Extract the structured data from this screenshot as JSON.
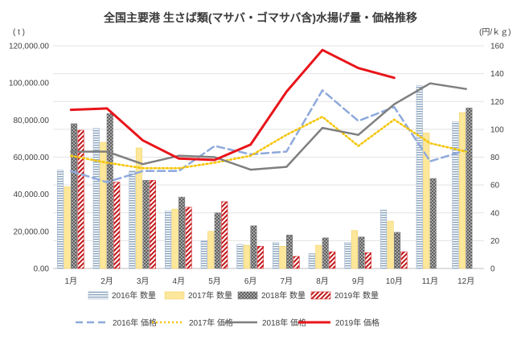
{
  "chart_data": {
    "type": "bar+line",
    "title": "全国主要港 生さば類(マサバ・ゴマサバ含)水揚げ量・価格推移",
    "y_left_unit": "( t )",
    "y_right_unit": "(円/ｋｇ)",
    "y_left_ticks": [
      "0.00",
      "20,000.00",
      "40,000.00",
      "60,000.00",
      "80,000.00",
      "100,000.00",
      "120,000.00"
    ],
    "y_right_ticks": [
      "0",
      "20",
      "40",
      "60",
      "80",
      "100",
      "120",
      "140",
      "160"
    ],
    "ylim_left": [
      0,
      120000
    ],
    "ylim_right": [
      0,
      160
    ],
    "grid": true,
    "legend_position": "bottom",
    "categories": [
      "1月",
      "2月",
      "3月",
      "4月",
      "5月",
      "6月",
      "7月",
      "8月",
      "9月",
      "10月",
      "11月",
      "12月"
    ],
    "bar_series": [
      {
        "name": "2016年 数量",
        "color": "#9fb6cd",
        "pattern": "hlines",
        "values": [
          53000,
          75500,
          52500,
          31000,
          15000,
          13000,
          14000,
          8000,
          14000,
          31500,
          98500,
          79000
        ]
      },
      {
        "name": "2017年 数量",
        "color": "#fde79a",
        "pattern": "solid",
        "values": [
          44000,
          68000,
          65000,
          32000,
          20000,
          12500,
          12000,
          12500,
          20500,
          25500,
          73000,
          84000
        ]
      },
      {
        "name": "2018年 数量",
        "color": "#808080",
        "pattern": "crosshatch",
        "values": [
          78000,
          83500,
          47500,
          38500,
          30000,
          23000,
          18000,
          16500,
          17000,
          19500,
          48500,
          86500
        ]
      },
      {
        "name": "2019年 数量",
        "color": "#d62728",
        "pattern": "diagonal",
        "values": [
          74500,
          46500,
          47500,
          33000,
          36000,
          12000,
          6500,
          9000,
          8500,
          9000,
          null,
          null
        ]
      }
    ],
    "line_series": [
      {
        "name": "2016年 価格",
        "color": "#8ea9db",
        "dash": "dashed",
        "values": [
          70,
          62,
          70,
          70,
          88,
          82,
          84,
          128,
          106,
          116,
          77,
          85
        ]
      },
      {
        "name": "2017年 価格",
        "color": "#f5c400",
        "dash": "dotted",
        "values": [
          81,
          76,
          72,
          72,
          76,
          81,
          96,
          109,
          88,
          107,
          90,
          84
        ]
      },
      {
        "name": "2018年 価格",
        "color": "#7f7f7f",
        "dash": "solid",
        "values": [
          84,
          84,
          75,
          81,
          80,
          71,
          73,
          101,
          96,
          118,
          133,
          129
        ]
      },
      {
        "name": "2019年 価格",
        "color": "#e8141a",
        "dash": "solid",
        "values": [
          114,
          115,
          92,
          79,
          78,
          89,
          127,
          157,
          144,
          137,
          null,
          null
        ]
      }
    ]
  }
}
